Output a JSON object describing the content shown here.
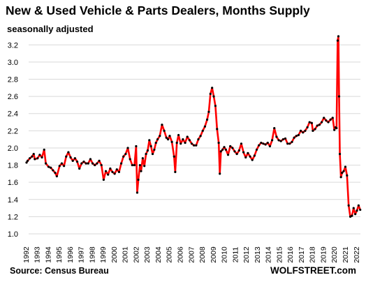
{
  "chart_data": {
    "type": "line",
    "title": "New & Used Vehicle & Parts Dealers, Months Supply",
    "subtitle": "seasonally adjusted",
    "xlabel": "",
    "ylabel": "",
    "ylim": [
      1.0,
      3.3
    ],
    "yticks": [
      "1.0",
      "1.2",
      "1.4",
      "1.6",
      "1.8",
      "2.0",
      "2.2",
      "2.4",
      "2.6",
      "2.8",
      "3.0",
      "3.2"
    ],
    "xticks": [
      "1992",
      "1993",
      "1994",
      "1995",
      "1996",
      "1997",
      "1998",
      "1999",
      "2000",
      "2001",
      "2002",
      "2003",
      "2004",
      "2005",
      "2006",
      "2007",
      "2008",
      "2009",
      "2010",
      "2011",
      "2012",
      "2013",
      "2014",
      "2015",
      "2016",
      "2017",
      "2018",
      "2019",
      "2020",
      "2021",
      "2022"
    ],
    "grid": true,
    "line_color": "#ff0000",
    "marker_color": "#000000",
    "source": "Source: Census Bureau",
    "brand": "WOLFSTREET.com",
    "series": [
      {
        "values": [
          [
            1992.0,
            1.83
          ],
          [
            1992.1,
            1.85
          ],
          [
            1992.3,
            1.88
          ],
          [
            1992.5,
            1.9
          ],
          [
            1992.65,
            1.93
          ],
          [
            1992.75,
            1.87
          ],
          [
            1993.0,
            1.88
          ],
          [
            1993.2,
            1.92
          ],
          [
            1993.4,
            1.89
          ],
          [
            1993.6,
            1.98
          ],
          [
            1993.75,
            1.82
          ],
          [
            1994.0,
            1.78
          ],
          [
            1994.2,
            1.77
          ],
          [
            1994.4,
            1.74
          ],
          [
            1994.6,
            1.71
          ],
          [
            1994.75,
            1.67
          ],
          [
            1995.0,
            1.79
          ],
          [
            1995.2,
            1.82
          ],
          [
            1995.4,
            1.79
          ],
          [
            1995.6,
            1.9
          ],
          [
            1995.8,
            1.95
          ],
          [
            1996.0,
            1.89
          ],
          [
            1996.2,
            1.85
          ],
          [
            1996.4,
            1.88
          ],
          [
            1996.6,
            1.84
          ],
          [
            1996.8,
            1.76
          ],
          [
            1997.0,
            1.82
          ],
          [
            1997.2,
            1.84
          ],
          [
            1997.4,
            1.82
          ],
          [
            1997.6,
            1.82
          ],
          [
            1997.8,
            1.87
          ],
          [
            1998.0,
            1.82
          ],
          [
            1998.2,
            1.8
          ],
          [
            1998.4,
            1.82
          ],
          [
            1998.6,
            1.85
          ],
          [
            1998.8,
            1.8
          ],
          [
            1999.0,
            1.63
          ],
          [
            1999.2,
            1.73
          ],
          [
            1999.4,
            1.69
          ],
          [
            1999.6,
            1.76
          ],
          [
            1999.8,
            1.72
          ],
          [
            2000.0,
            1.7
          ],
          [
            2000.2,
            1.75
          ],
          [
            2000.4,
            1.72
          ],
          [
            2000.6,
            1.82
          ],
          [
            2000.8,
            1.9
          ],
          [
            2001.0,
            1.93
          ],
          [
            2001.2,
            2.0
          ],
          [
            2001.4,
            1.87
          ],
          [
            2001.6,
            1.8
          ],
          [
            2001.8,
            1.8
          ],
          [
            2001.95,
            2.02
          ],
          [
            2002.05,
            1.48
          ],
          [
            2002.15,
            1.63
          ],
          [
            2002.3,
            1.8
          ],
          [
            2002.4,
            1.73
          ],
          [
            2002.55,
            1.88
          ],
          [
            2002.7,
            1.79
          ],
          [
            2002.85,
            1.93
          ],
          [
            2003.0,
            1.97
          ],
          [
            2003.15,
            2.09
          ],
          [
            2003.3,
            2.02
          ],
          [
            2003.45,
            1.93
          ],
          [
            2003.6,
            1.98
          ],
          [
            2003.75,
            2.06
          ],
          [
            2003.9,
            2.1
          ],
          [
            2004.1,
            2.14
          ],
          [
            2004.3,
            2.27
          ],
          [
            2004.5,
            2.2
          ],
          [
            2004.7,
            2.12
          ],
          [
            2004.85,
            2.1
          ],
          [
            2005.0,
            2.14
          ],
          [
            2005.2,
            2.07
          ],
          [
            2005.4,
            1.9
          ],
          [
            2005.5,
            1.72
          ],
          [
            2005.65,
            2.06
          ],
          [
            2005.8,
            2.15
          ],
          [
            2006.0,
            2.05
          ],
          [
            2006.2,
            2.1
          ],
          [
            2006.4,
            2.06
          ],
          [
            2006.6,
            2.13
          ],
          [
            2006.8,
            2.09
          ],
          [
            2007.0,
            2.05
          ],
          [
            2007.2,
            2.03
          ],
          [
            2007.4,
            2.03
          ],
          [
            2007.6,
            2.1
          ],
          [
            2007.8,
            2.14
          ],
          [
            2008.0,
            2.2
          ],
          [
            2008.2,
            2.25
          ],
          [
            2008.4,
            2.33
          ],
          [
            2008.55,
            2.42
          ],
          [
            2008.7,
            2.63
          ],
          [
            2008.85,
            2.7
          ],
          [
            2009.0,
            2.6
          ],
          [
            2009.15,
            2.49
          ],
          [
            2009.3,
            2.22
          ],
          [
            2009.45,
            2.06
          ],
          [
            2009.55,
            1.7
          ],
          [
            2009.65,
            1.96
          ],
          [
            2009.8,
            1.98
          ],
          [
            2009.95,
            2.01
          ],
          [
            2010.1,
            1.98
          ],
          [
            2010.3,
            1.92
          ],
          [
            2010.5,
            2.02
          ],
          [
            2010.7,
            2.0
          ],
          [
            2010.9,
            1.96
          ],
          [
            2011.1,
            1.93
          ],
          [
            2011.3,
            1.97
          ],
          [
            2011.5,
            2.05
          ],
          [
            2011.7,
            1.95
          ],
          [
            2011.9,
            1.89
          ],
          [
            2012.1,
            1.94
          ],
          [
            2012.3,
            1.9
          ],
          [
            2012.5,
            1.86
          ],
          [
            2012.7,
            1.91
          ],
          [
            2012.9,
            1.98
          ],
          [
            2013.1,
            2.03
          ],
          [
            2013.3,
            2.06
          ],
          [
            2013.5,
            2.05
          ],
          [
            2013.7,
            2.04
          ],
          [
            2013.9,
            2.06
          ],
          [
            2014.1,
            2.02
          ],
          [
            2014.3,
            2.09
          ],
          [
            2014.5,
            2.23
          ],
          [
            2014.7,
            2.13
          ],
          [
            2014.9,
            2.09
          ],
          [
            2015.1,
            2.08
          ],
          [
            2015.3,
            2.1
          ],
          [
            2015.5,
            2.11
          ],
          [
            2015.7,
            2.05
          ],
          [
            2015.9,
            2.05
          ],
          [
            2016.1,
            2.07
          ],
          [
            2016.3,
            2.12
          ],
          [
            2016.5,
            2.14
          ],
          [
            2016.7,
            2.15
          ],
          [
            2016.9,
            2.2
          ],
          [
            2017.1,
            2.18
          ],
          [
            2017.3,
            2.2
          ],
          [
            2017.5,
            2.24
          ],
          [
            2017.7,
            2.3
          ],
          [
            2017.9,
            2.29
          ],
          [
            2018.0,
            2.2
          ],
          [
            2018.2,
            2.22
          ],
          [
            2018.4,
            2.26
          ],
          [
            2018.6,
            2.27
          ],
          [
            2018.8,
            2.3
          ],
          [
            2019.0,
            2.35
          ],
          [
            2019.2,
            2.32
          ],
          [
            2019.4,
            2.3
          ],
          [
            2019.6,
            2.33
          ],
          [
            2019.8,
            2.35
          ],
          [
            2019.95,
            2.21
          ],
          [
            2020.05,
            2.24
          ],
          [
            2020.15,
            2.23
          ],
          [
            2020.25,
            3.25
          ],
          [
            2020.32,
            3.3
          ],
          [
            2020.38,
            2.6
          ],
          [
            2020.45,
            1.93
          ],
          [
            2020.55,
            1.66
          ],
          [
            2020.65,
            1.71
          ],
          [
            2020.8,
            1.73
          ],
          [
            2020.95,
            1.78
          ],
          [
            2021.1,
            1.68
          ],
          [
            2021.25,
            1.33
          ],
          [
            2021.4,
            1.2
          ],
          [
            2021.55,
            1.21
          ],
          [
            2021.7,
            1.3
          ],
          [
            2021.85,
            1.23
          ],
          [
            2022.0,
            1.27
          ],
          [
            2022.15,
            1.33
          ],
          [
            2022.3,
            1.28
          ]
        ]
      }
    ]
  }
}
